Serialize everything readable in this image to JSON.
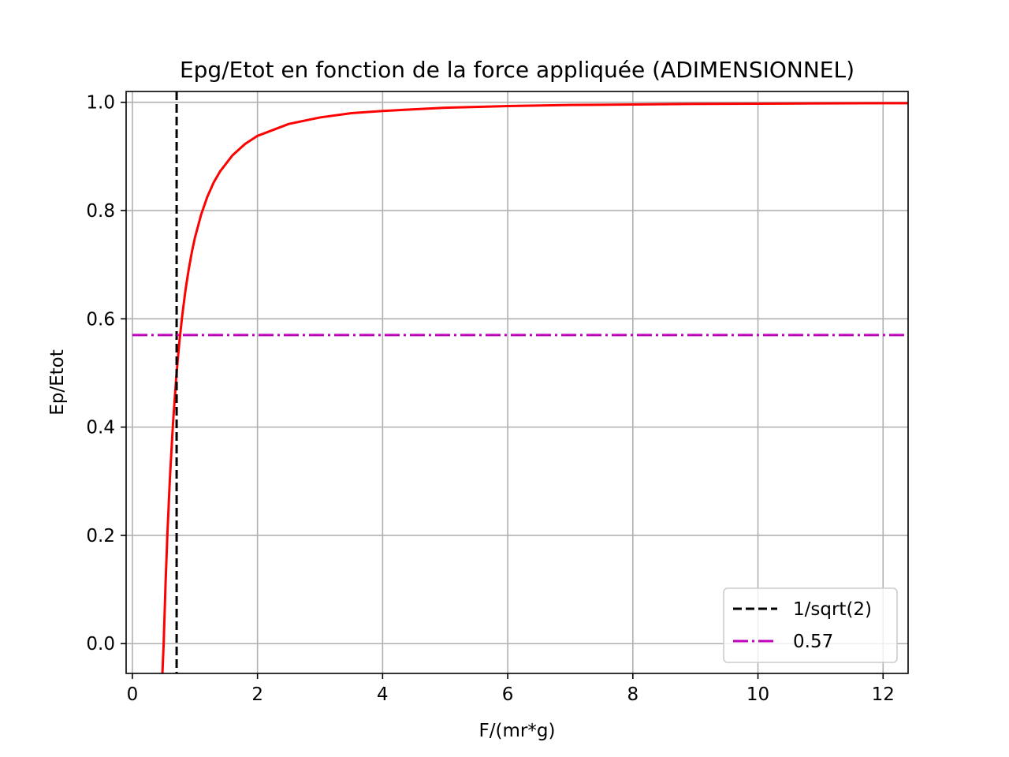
{
  "chart_data": {
    "type": "line",
    "title": "Epg/Etot en fonction de la force appliquée (ADIMENSIONNEL)",
    "xlabel": "F/(mr*g)",
    "ylabel": "Ep/Etot",
    "xlim": [
      -0.1,
      12.4
    ],
    "ylim": [
      -0.055,
      1.02
    ],
    "grid": true,
    "xticks": [
      0,
      2,
      4,
      6,
      8,
      10,
      12
    ],
    "xtick_labels": [
      "0",
      "2",
      "4",
      "6",
      "8",
      "10",
      "12"
    ],
    "yticks": [
      0.0,
      0.2,
      0.4,
      0.6,
      0.8,
      1.0
    ],
    "ytick_labels": [
      "0.0",
      "0.2",
      "0.4",
      "0.6",
      "0.8",
      "1.0"
    ],
    "series": [
      {
        "name": "Ep/Etot",
        "color": "#ff0000",
        "style": "solid",
        "in_legend": false,
        "x": [
          0.48,
          0.5,
          0.53,
          0.56,
          0.6,
          0.65,
          0.7,
          0.71,
          0.75,
          0.8,
          0.85,
          0.9,
          0.95,
          1.0,
          1.1,
          1.2,
          1.3,
          1.4,
          1.6,
          1.8,
          2.0,
          2.5,
          3.0,
          3.5,
          4.0,
          5.0,
          6.0,
          7.0,
          8.0,
          9.0,
          10.0,
          11.0,
          12.0,
          12.4
        ],
        "y": [
          -0.055,
          0.0,
          0.11,
          0.203,
          0.306,
          0.408,
          0.49,
          0.504,
          0.556,
          0.609,
          0.654,
          0.691,
          0.723,
          0.75,
          0.793,
          0.826,
          0.852,
          0.872,
          0.902,
          0.923,
          0.938,
          0.96,
          0.972,
          0.98,
          0.984,
          0.99,
          0.993,
          0.995,
          0.996,
          0.997,
          0.9975,
          0.998,
          0.9983,
          0.9984
        ]
      },
      {
        "name": "1/sqrt(2)",
        "color": "#000000",
        "style": "dashed",
        "orientation": "vertical",
        "x": 0.7071
      },
      {
        "name": "0.57",
        "color": "#bf00bf",
        "style": "dashdot",
        "orientation": "horizontal",
        "y": 0.57
      }
    ],
    "legend": {
      "location": "lower-right",
      "entries": [
        "1/sqrt(2)",
        "0.57"
      ]
    }
  }
}
